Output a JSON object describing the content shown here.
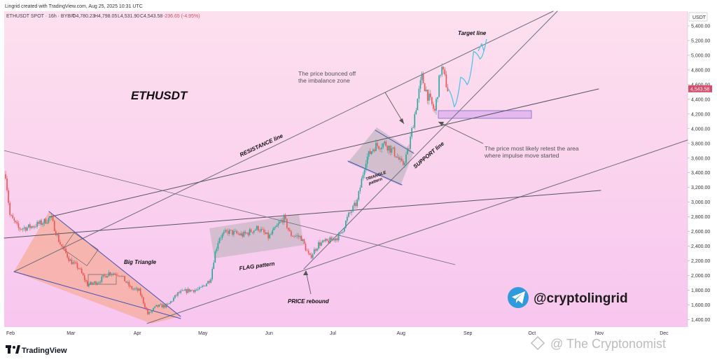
{
  "header": {
    "creator_line": "Lingrid created with TradingView.com, Aug 25, 2025 10:31 UTC",
    "symbol_line": "ETHUSDT SPOT · 16h · BYBIT",
    "open": "O4,780.23",
    "high": "H4,798.05",
    "low": "L4,531.90",
    "close": "C4,543.58",
    "change": "-236.65 (-4.95%)"
  },
  "colors": {
    "bg_top": "#fde0ee",
    "bg_bottom": "#f8c6ef",
    "up": "#26a69a",
    "down": "#ef5350",
    "projection": "#4fc3e8",
    "price_tag": "#d94d6a"
  },
  "chart_data": {
    "type": "candlestick",
    "title": "ETHUSDT",
    "symbol": "ETHUSDT SPOT",
    "timeframe": "16h",
    "exchange": "BYBIT",
    "y_unit": "USDT",
    "ylim": [
      1300,
      5600
    ],
    "y_ticks": [
      "5,400.00",
      "5,200.00",
      "5,000.00",
      "4,800.00",
      "4,600.00",
      "4,400.00",
      "4,200.00",
      "4,000.00",
      "3,800.00",
      "3,600.00",
      "3,400.00",
      "3,200.00",
      "3,000.00",
      "2,800.00",
      "2,600.00",
      "2,400.00",
      "2,200.00",
      "2,000.00",
      "1,800.00",
      "1,600.00",
      "1,400.00"
    ],
    "x_ticks": [
      "Feb",
      "Mar",
      "Apr",
      "May",
      "Jun",
      "Jul",
      "Aug",
      "Sep",
      "Oct",
      "Nov",
      "Dec"
    ],
    "current_price": "4,543.58",
    "price_path": [
      [
        "2025-02-01",
        3380
      ],
      [
        "2025-02-03",
        2820
      ],
      [
        "2025-02-07",
        2640
      ],
      [
        "2025-02-12",
        2660
      ],
      [
        "2025-02-18",
        2720
      ],
      [
        "2025-02-22",
        2790
      ],
      [
        "2025-02-26",
        2450
      ],
      [
        "2025-03-03",
        2200
      ],
      [
        "2025-03-07",
        2100
      ],
      [
        "2025-03-11",
        1870
      ],
      [
        "2025-03-16",
        1920
      ],
      [
        "2025-03-21",
        2040
      ],
      [
        "2025-03-26",
        2020
      ],
      [
        "2025-03-31",
        1830
      ],
      [
        "2025-04-04",
        1790
      ],
      [
        "2025-04-08",
        1470
      ],
      [
        "2025-04-12",
        1580
      ],
      [
        "2025-04-17",
        1590
      ],
      [
        "2025-04-22",
        1760
      ],
      [
        "2025-04-27",
        1800
      ],
      [
        "2025-05-02",
        1810
      ],
      [
        "2025-05-07",
        1950
      ],
      [
        "2025-05-09",
        2300
      ],
      [
        "2025-05-11",
        2520
      ],
      [
        "2025-05-15",
        2600
      ],
      [
        "2025-05-22",
        2550
      ],
      [
        "2025-05-29",
        2650
      ],
      [
        "2025-06-03",
        2520
      ],
      [
        "2025-06-10",
        2790
      ],
      [
        "2025-06-13",
        2560
      ],
      [
        "2025-06-18",
        2520
      ],
      [
        "2025-06-22",
        2240
      ],
      [
        "2025-06-26",
        2430
      ],
      [
        "2025-07-01",
        2470
      ],
      [
        "2025-07-06",
        2540
      ],
      [
        "2025-07-10",
        2820
      ],
      [
        "2025-07-14",
        3000
      ],
      [
        "2025-07-18",
        3580
      ],
      [
        "2025-07-22",
        3760
      ],
      [
        "2025-07-27",
        3800
      ],
      [
        "2025-08-01",
        3650
      ],
      [
        "2025-08-04",
        3490
      ],
      [
        "2025-08-07",
        3740
      ],
      [
        "2025-08-10",
        4250
      ],
      [
        "2025-08-13",
        4700
      ],
      [
        "2025-08-16",
        4430
      ],
      [
        "2025-08-19",
        4230
      ],
      [
        "2025-08-22",
        4850
      ],
      [
        "2025-08-25",
        4543.58
      ]
    ],
    "projection_path": [
      [
        4543.58,
        "2025-08-25"
      ],
      [
        4300,
        "2025-08-28"
      ],
      [
        4700,
        "2025-08-31"
      ],
      [
        4600,
        "2025-09-03"
      ],
      [
        5050,
        "2025-09-06"
      ],
      [
        4950,
        "2025-09-09"
      ],
      [
        5220,
        "2025-09-12"
      ]
    ],
    "annotations": {
      "target": "Target line",
      "bounce": "The price bounced off the imbalance zone",
      "resistance": "RESISTANCE line",
      "support": "SUPPORT line",
      "retest": "The price most likely retest the area where impulse move started",
      "triangle": "TRIANGLE pattern",
      "flag": "FLAG pattern",
      "big_triangle": "Big Triangle",
      "rebound": "PRICE rebound"
    }
  },
  "branding": {
    "handle": "@cryptolingrid",
    "tradingview": "TradingView",
    "watermark": "@ The Cryptonomist"
  }
}
